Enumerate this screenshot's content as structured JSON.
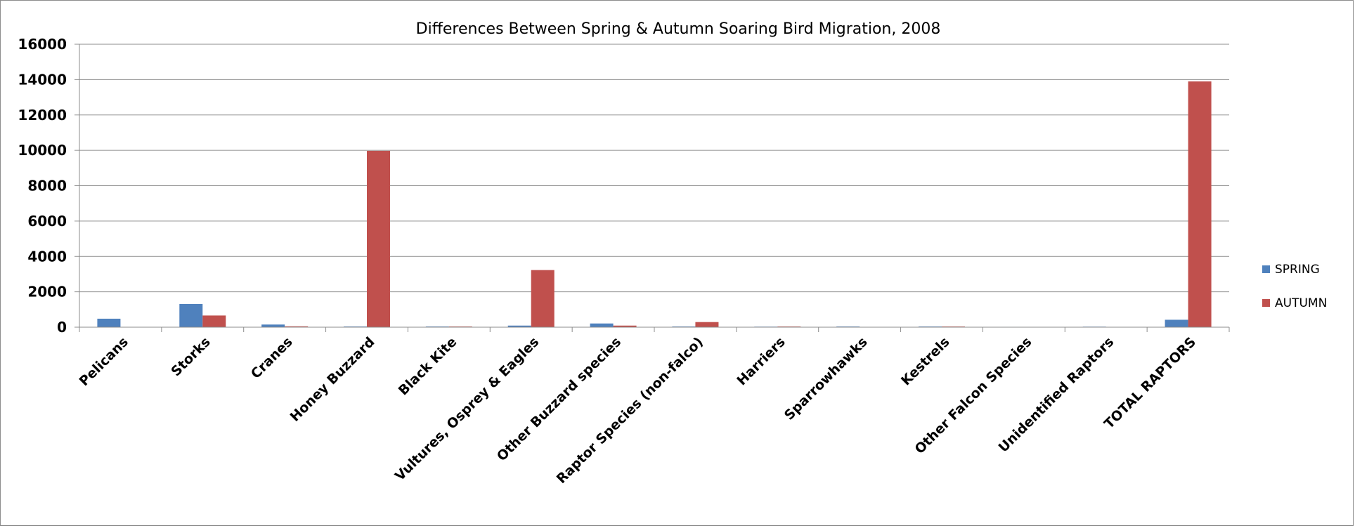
{
  "chart_data": {
    "type": "bar",
    "title": "Differences Between Spring & Autumn Soaring Bird Migration, 2008",
    "xlabel": "",
    "ylabel": "",
    "ylim": [
      0,
      16000
    ],
    "yticks": [
      0,
      2000,
      4000,
      6000,
      8000,
      10000,
      12000,
      14000,
      16000
    ],
    "grid": true,
    "legend_position": "right",
    "categories": [
      "Pelicans",
      "Storks",
      "Cranes",
      "Honey Buzzard",
      "Black Kite",
      "Vultures, Osprey & Eagles",
      "Other Buzzard species",
      "Raptor Species (non-falco)",
      "Harriers",
      "Sparrowhawks",
      "Kestrels",
      "Other Falcon Species",
      "Unidentified Raptors",
      "TOTAL RAPTORS"
    ],
    "series": [
      {
        "name": "SPRING",
        "color": "#4f81bd",
        "values": [
          480,
          1310,
          150,
          40,
          40,
          90,
          210,
          40,
          30,
          40,
          40,
          20,
          30,
          420
        ]
      },
      {
        "name": "AUTUMN",
        "color": "#c0504d",
        "values": [
          0,
          660,
          50,
          9970,
          40,
          3230,
          90,
          290,
          40,
          0,
          40,
          0,
          0,
          13900
        ]
      }
    ]
  }
}
